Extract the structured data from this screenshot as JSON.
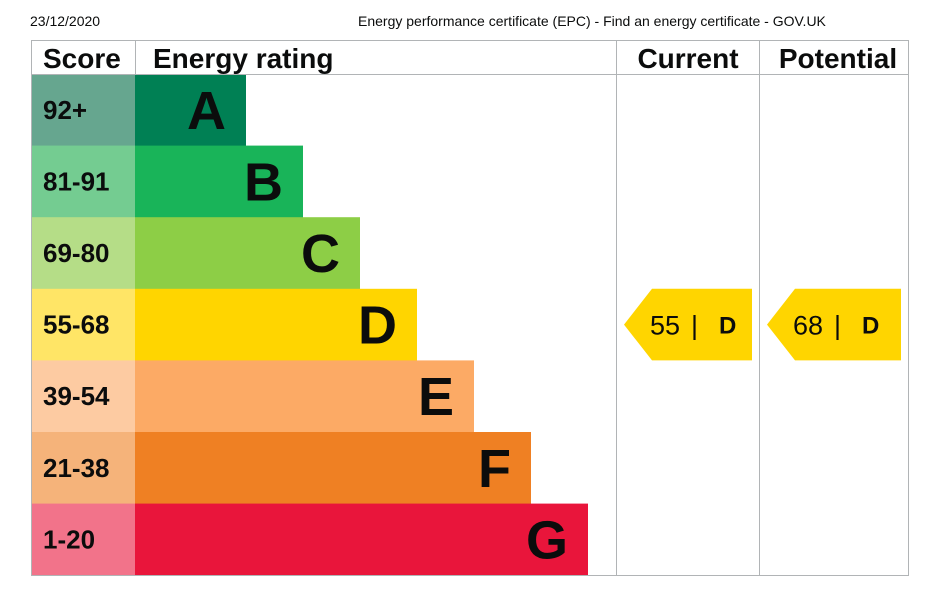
{
  "header": {
    "date": "23/12/2020",
    "title": "Energy performance certificate (EPC) - Find an energy certificate - GOV.UK"
  },
  "chart_data": {
    "type": "table",
    "columns": {
      "score": "Score",
      "rating": "Energy rating",
      "current": "Current",
      "potential": "Potential"
    },
    "bands": [
      {
        "score": "92+",
        "letter": "A",
        "color": "#008054",
        "score_bg": "#66a68f"
      },
      {
        "score": "81-91",
        "letter": "B",
        "color": "#19b459",
        "score_bg": "#74cc91"
      },
      {
        "score": "69-80",
        "letter": "C",
        "color": "#8dce46",
        "score_bg": "#b5dd87"
      },
      {
        "score": "55-68",
        "letter": "D",
        "color": "#ffd500",
        "score_bg": "#ffe566"
      },
      {
        "score": "39-54",
        "letter": "E",
        "color": "#fcaa65",
        "score_bg": "#fdcba2"
      },
      {
        "score": "21-38",
        "letter": "F",
        "color": "#ef8023",
        "score_bg": "#f5b37a"
      },
      {
        "score": "1-20",
        "letter": "G",
        "color": "#e9153b",
        "score_bg": "#f2738a"
      }
    ],
    "current": {
      "value": 55,
      "letter": "D",
      "color": "#ffd500"
    },
    "potential": {
      "value": 68,
      "letter": "D",
      "color": "#ffd500"
    },
    "border_color": "#b1b4b6"
  }
}
